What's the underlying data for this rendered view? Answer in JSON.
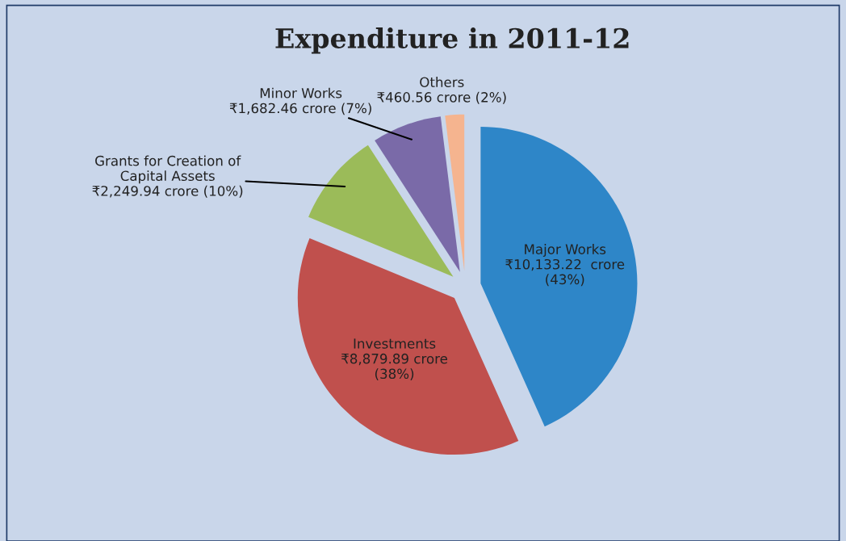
{
  "chart_data": {
    "type": "pie",
    "title": "Expenditure in 2011-12",
    "categories": [
      "Major Works",
      "Investments",
      "Grants for Creation of\nCapital Assets",
      "Minor Works",
      "Others"
    ],
    "values": [
      10133.22,
      8879.89,
      2249.94,
      1682.46,
      460.56
    ],
    "colors": [
      "#2e86c8",
      "#c0504d",
      "#9bbb59",
      "#7a6aa8",
      "#f5b48f"
    ],
    "value_labels": [
      "₹10,133.22  crore\n(43%)",
      "₹8,879.89 crore\n(38%)",
      "₹2,249.94 crore (10%)",
      "₹1,682.46 crore (7%)",
      "₹460.56 crore (2%)"
    ]
  }
}
